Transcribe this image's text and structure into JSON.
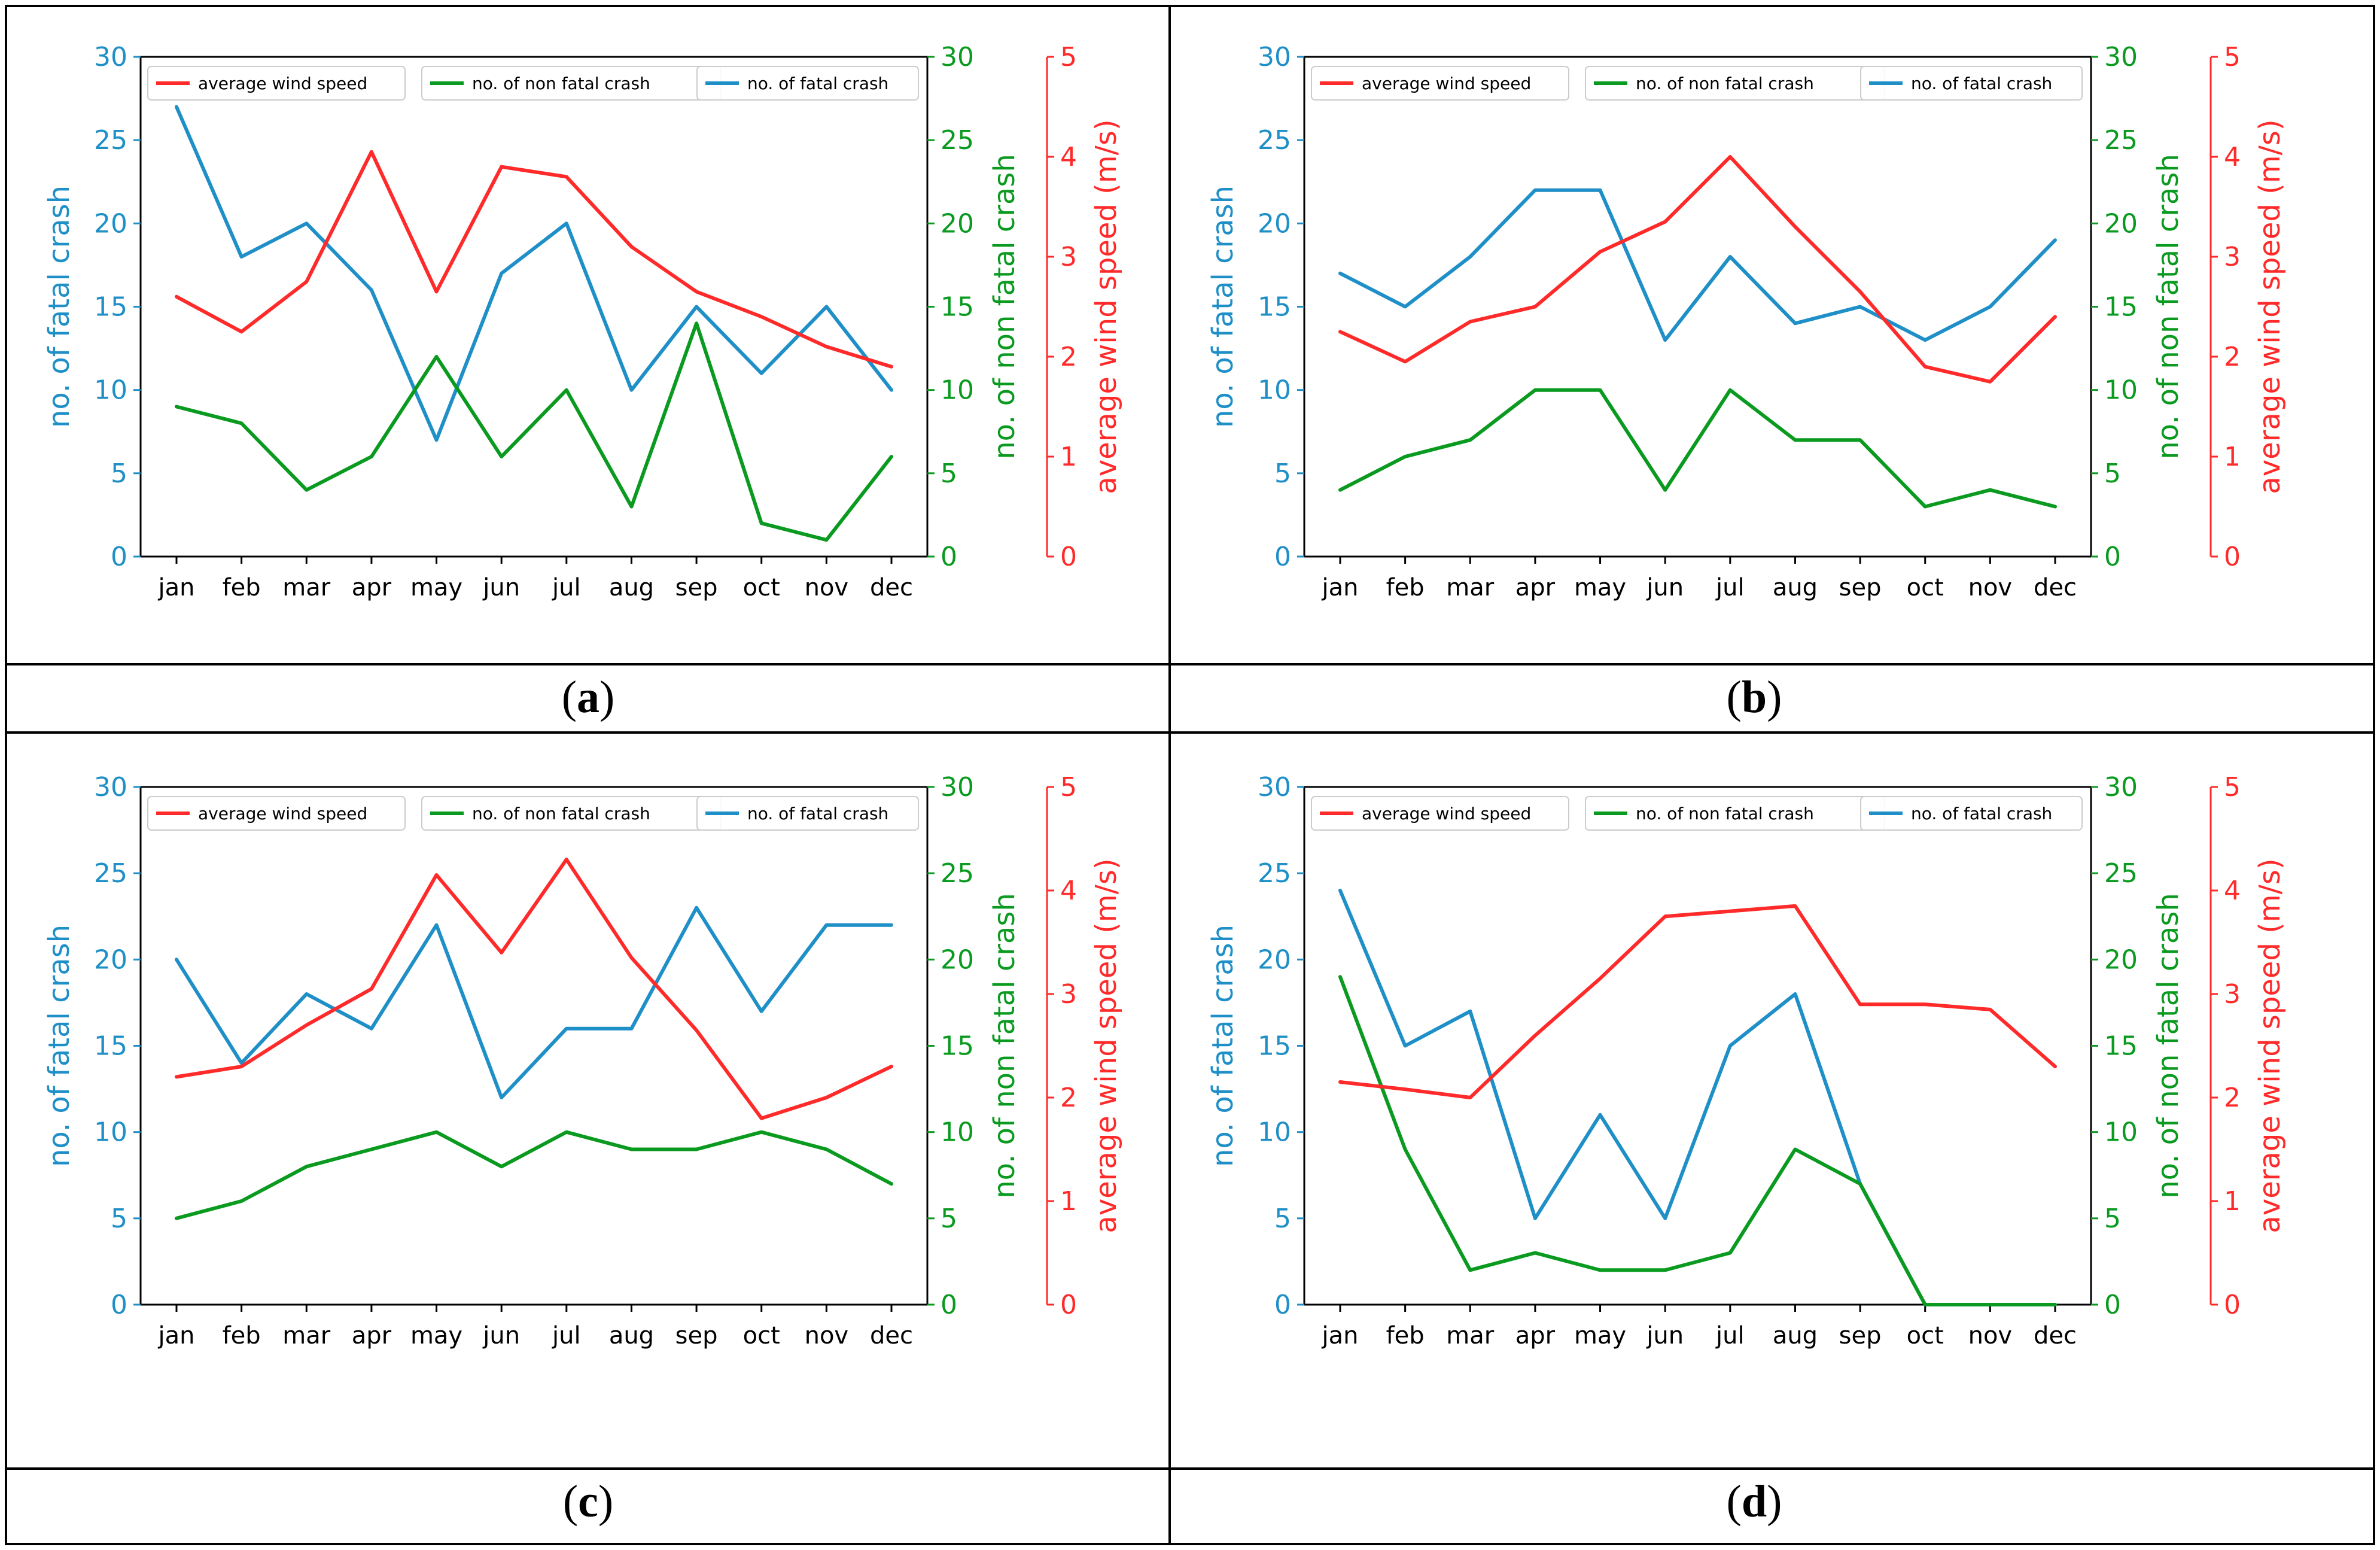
{
  "colors": {
    "fatal": "#1f8fc7",
    "nonfatal": "#0a9a1f",
    "wind": "#ff2a2a",
    "axis": "#000000"
  },
  "axis_titles": {
    "left": "no. of fatal crash",
    "right1": "no. of non fatal crash",
    "right2": "average wind speed (m/s)"
  },
  "legend": {
    "wind": "average wind speed",
    "nonfatal": "no. of non fatal crash",
    "fatal": "no. of fatal crash"
  },
  "captions": [
    {
      "open": "(",
      "letter": "a",
      "close": ")"
    },
    {
      "open": "(",
      "letter": "b",
      "close": ")"
    },
    {
      "open": "(",
      "letter": "c",
      "close": ")"
    },
    {
      "open": "(",
      "letter": "d",
      "close": ")"
    }
  ],
  "chart_data": [
    {
      "type": "line",
      "panel": "a",
      "categories": [
        "jan",
        "feb",
        "mar",
        "apr",
        "may",
        "jun",
        "jul",
        "aug",
        "sep",
        "oct",
        "nov",
        "dec"
      ],
      "series": [
        {
          "name": "no. of fatal crash",
          "axis": "left",
          "values": [
            27,
            18,
            20,
            16,
            7,
            17,
            20,
            10,
            15,
            11,
            15,
            10
          ]
        },
        {
          "name": "no. of non fatal crash",
          "axis": "right1",
          "values": [
            9,
            8,
            4,
            6,
            12,
            6,
            10,
            3,
            14,
            2,
            1,
            6
          ]
        },
        {
          "name": "average wind speed",
          "axis": "right2",
          "values": [
            2.6,
            2.25,
            2.75,
            4.05,
            2.65,
            3.9,
            3.8,
            3.1,
            2.65,
            2.4,
            2.1,
            1.9
          ]
        }
      ],
      "ylim_left": [
        0,
        30
      ],
      "ylim_right1": [
        0,
        30
      ],
      "ylim_right2": [
        0,
        5
      ],
      "yticks_left": [
        0,
        5,
        10,
        15,
        20,
        25,
        30
      ],
      "yticks_right1": [
        0,
        5,
        10,
        15,
        20,
        25,
        30
      ],
      "yticks_right2": [
        0,
        1,
        2,
        3,
        4,
        5
      ],
      "legend": "top"
    },
    {
      "type": "line",
      "panel": "b",
      "categories": [
        "jan",
        "feb",
        "mar",
        "apr",
        "may",
        "jun",
        "jul",
        "aug",
        "sep",
        "oct",
        "nov",
        "dec"
      ],
      "series": [
        {
          "name": "no. of fatal crash",
          "axis": "left",
          "values": [
            17,
            15,
            18,
            22,
            22,
            13,
            18,
            14,
            15,
            13,
            15,
            19
          ]
        },
        {
          "name": "no. of non fatal crash",
          "axis": "right1",
          "values": [
            4,
            6,
            7,
            10,
            10,
            4,
            10,
            7,
            7,
            3,
            4,
            3
          ]
        },
        {
          "name": "average wind speed",
          "axis": "right2",
          "values": [
            2.25,
            1.95,
            2.35,
            2.5,
            3.05,
            3.35,
            4.0,
            3.3,
            2.65,
            1.9,
            1.75,
            2.4
          ]
        }
      ],
      "ylim_left": [
        0,
        30
      ],
      "ylim_right1": [
        0,
        30
      ],
      "ylim_right2": [
        0,
        5
      ],
      "yticks_left": [
        0,
        5,
        10,
        15,
        20,
        25,
        30
      ],
      "yticks_right1": [
        0,
        5,
        10,
        15,
        20,
        25,
        30
      ],
      "yticks_right2": [
        0,
        1,
        2,
        3,
        4,
        5
      ],
      "legend": "top"
    },
    {
      "type": "line",
      "panel": "c",
      "categories": [
        "jan",
        "feb",
        "mar",
        "apr",
        "may",
        "jun",
        "jul",
        "aug",
        "sep",
        "oct",
        "nov",
        "dec"
      ],
      "series": [
        {
          "name": "no. of fatal crash",
          "axis": "left",
          "values": [
            20,
            14,
            18,
            16,
            22,
            12,
            16,
            16,
            23,
            17,
            22,
            22
          ]
        },
        {
          "name": "no. of non fatal crash",
          "axis": "right1",
          "values": [
            5,
            6,
            8,
            9,
            10,
            8,
            10,
            9,
            9,
            10,
            9,
            7
          ]
        },
        {
          "name": "average wind speed",
          "axis": "right2",
          "values": [
            2.2,
            2.3,
            2.7,
            3.05,
            4.15,
            3.4,
            4.3,
            3.35,
            2.65,
            1.8,
            2.0,
            2.3
          ]
        }
      ],
      "ylim_left": [
        0,
        30
      ],
      "ylim_right1": [
        0,
        30
      ],
      "ylim_right2": [
        0,
        5
      ],
      "yticks_left": [
        0,
        5,
        10,
        15,
        20,
        25,
        30
      ],
      "yticks_right1": [
        0,
        5,
        10,
        15,
        20,
        25,
        30
      ],
      "yticks_right2": [
        0,
        1,
        2,
        3,
        4,
        5
      ],
      "legend": "top"
    },
    {
      "type": "line",
      "panel": "d",
      "categories": [
        "jan",
        "feb",
        "mar",
        "apr",
        "may",
        "jun",
        "jul",
        "aug",
        "sep",
        "oct",
        "nov",
        "dec"
      ],
      "series": [
        {
          "name": "no. of fatal crash",
          "axis": "left",
          "values": [
            24,
            15,
            17,
            5,
            11,
            5,
            15,
            18,
            7,
            0,
            0,
            0
          ]
        },
        {
          "name": "no. of non fatal crash",
          "axis": "right1",
          "values": [
            19,
            9,
            2,
            3,
            2,
            2,
            3,
            9,
            7,
            0,
            0,
            0
          ]
        },
        {
          "name": "average wind speed",
          "axis": "right2",
          "values": [
            2.15,
            2.08,
            2.0,
            2.6,
            3.15,
            3.75,
            3.8,
            3.85,
            2.9,
            2.9,
            2.85,
            2.3
          ]
        }
      ],
      "ylim_left": [
        0,
        30
      ],
      "ylim_right1": [
        0,
        30
      ],
      "ylim_right2": [
        0,
        5
      ],
      "yticks_left": [
        0,
        5,
        10,
        15,
        20,
        25,
        30
      ],
      "yticks_right1": [
        0,
        5,
        10,
        15,
        20,
        25,
        30
      ],
      "yticks_right2": [
        0,
        1,
        2,
        3,
        4,
        5
      ],
      "legend": "top"
    }
  ]
}
